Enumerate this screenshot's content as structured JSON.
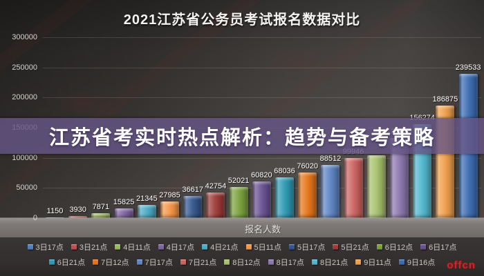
{
  "banner": {
    "text": "江苏省考实时热点解析：趋势与备考策略",
    "bg_color": "#655585"
  },
  "watermark": {
    "text": "offcn",
    "color": "#e02020"
  },
  "chart_data": {
    "type": "bar",
    "title": "2021江苏省公务员考试报名数据对比",
    "xlabel": "报名人数",
    "ylabel": "",
    "ylim": [
      0,
      300000
    ],
    "yticks": [
      0,
      50000,
      100000,
      150000,
      200000,
      250000,
      300000
    ],
    "grid": true,
    "legend_position": "bottom",
    "legend_rows": [
      10,
      9
    ],
    "categories": [
      "3日17点",
      "3日21点",
      "4日11点",
      "4日17点",
      "4日21点",
      "5日11点",
      "5日17点",
      "5日21点",
      "6日12点",
      "6日17点",
      "6日21点",
      "7日12点",
      "7日17点",
      "7日21点",
      "8日12点",
      "8日17点",
      "8日21点",
      "9日11点",
      "9日16点"
    ],
    "values": [
      1150,
      3930,
      7871,
      15825,
      21345,
      27985,
      36617,
      42754,
      52021,
      60820,
      68036,
      76020,
      88512,
      99946,
      104000,
      132765,
      156274,
      186875,
      239533
    ],
    "value_labels": [
      "1150",
      "3930",
      "7871",
      "15825",
      "21345",
      "27985",
      "36617",
      "42754",
      "52021",
      "60820",
      "68036",
      "76020",
      "88512",
      "99946",
      "",
      "132765",
      "156274",
      "186875",
      "239533"
    ],
    "colors": [
      "#4f81bd",
      "#c0504d",
      "#9bbb59",
      "#8064a2",
      "#4bacc6",
      "#f79646",
      "#34568e",
      "#9e3b38",
      "#7ca23e",
      "#6a5292",
      "#2e9bb5",
      "#e8751a",
      "#5e85c4",
      "#cd6361",
      "#a8c26e",
      "#8d77ae",
      "#52b7ce",
      "#f0a04b",
      "#3c6cb4"
    ],
    "note": "8日12点 value label is hidden behind the purple banner; its value is estimated from bar height. 132765 and 99946 labels show faintly through the translucent banner."
  }
}
